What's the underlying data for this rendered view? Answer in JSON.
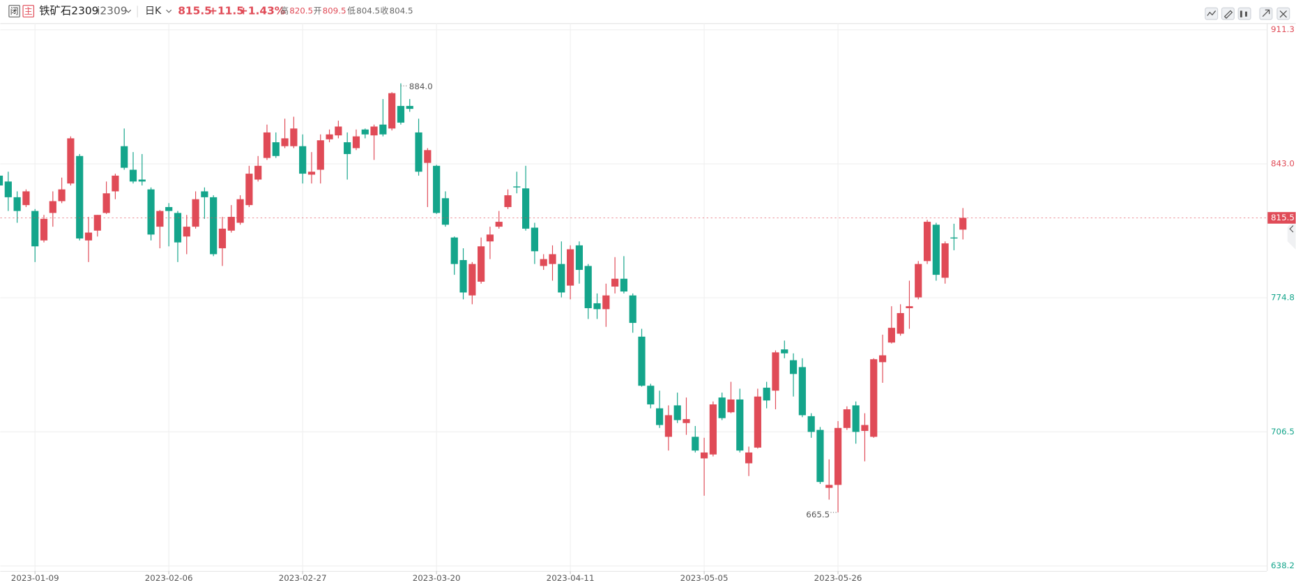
{
  "header": {
    "buttons": [
      "闭",
      "主"
    ],
    "name": "铁矿石2309",
    "code": "i2309",
    "period": "日K",
    "change": "+11.5",
    "change_pct": "+1.43%",
    "stat_labels": [
      "高",
      "开",
      "低",
      "收"
    ],
    "prev_close": 804.5
  },
  "chart_data": {
    "type": "candlestick",
    "categories": [
      null,
      null,
      null,
      null,
      "2023-01-09",
      null,
      null,
      null,
      null,
      null,
      null,
      null,
      null,
      null,
      null,
      null,
      null,
      null,
      null,
      "2023-02-06",
      null,
      null,
      null,
      null,
      null,
      null,
      null,
      null,
      null,
      null,
      null,
      null,
      null,
      null,
      "2023-02-27",
      null,
      null,
      null,
      null,
      null,
      null,
      null,
      null,
      null,
      null,
      null,
      null,
      null,
      null,
      "2023-03-20",
      null,
      null,
      null,
      null,
      null,
      null,
      null,
      null,
      null,
      null,
      null,
      null,
      null,
      null,
      "2023-04-11",
      null,
      null,
      null,
      null,
      null,
      null,
      null,
      null,
      null,
      null,
      null,
      null,
      null,
      null,
      "2023-05-05",
      null,
      null,
      null,
      null,
      null,
      null,
      null,
      null,
      null,
      null,
      null,
      null,
      null,
      null,
      "2023-05-26",
      null,
      null,
      null,
      null,
      null,
      null,
      null,
      null,
      null,
      null,
      null,
      null,
      null,
      null
    ],
    "open": [
      837,
      834,
      826,
      822,
      819,
      804,
      818,
      824,
      833,
      847,
      804,
      809,
      818,
      829,
      852,
      840,
      835,
      830,
      811,
      821,
      818,
      806,
      811,
      829,
      826,
      800,
      809,
      813,
      822,
      835,
      846,
      854,
      852,
      852,
      852,
      837.5,
      840,
      855.5,
      857.5,
      854,
      851,
      860.5,
      857.5,
      863,
      861,
      872.5,
      872.5,
      859,
      843.5,
      842,
      825.5,
      805.5,
      794,
      776,
      783,
      803.5,
      811,
      821,
      831.5,
      830.5,
      810.5,
      791,
      792,
      792,
      781,
      801.5,
      791,
      772,
      769,
      780.5,
      784.5,
      776,
      755,
      730,
      718.5,
      704,
      720,
      711,
      704,
      693,
      695,
      724,
      716.5,
      723,
      690.5,
      698.5,
      729,
      727.5,
      748.5,
      743,
      739.5,
      714.5,
      707.5,
      678,
      679.5,
      708.5,
      720,
      707,
      704,
      742,
      752,
      756.5,
      769.5,
      775,
      793.5,
      812,
      785,
      805.5,
      809.5
    ],
    "high": [
      840,
      839,
      829,
      830,
      820,
      817,
      829,
      836,
      857,
      848,
      816,
      817,
      834,
      838,
      861,
      849,
      848,
      831,
      819.5,
      823,
      819,
      817,
      829,
      831,
      827,
      816,
      822,
      827,
      842,
      847,
      863,
      859,
      866,
      867,
      858,
      849,
      858,
      860.5,
      865,
      859,
      860.5,
      861,
      863,
      876,
      879.5,
      884,
      876,
      866,
      851,
      842.5,
      829,
      806,
      800,
      793,
      805.5,
      811,
      819,
      830,
      839,
      842,
      813,
      797,
      801.5,
      803.5,
      801.5,
      803.5,
      792,
      777,
      782,
      795.5,
      796,
      777,
      759,
      731,
      727.5,
      720,
      726.5,
      724,
      709.5,
      703.5,
      722,
      726.5,
      732,
      728.5,
      699,
      728.5,
      732,
      748,
      753,
      746.5,
      744,
      716,
      709,
      692.5,
      712,
      719.5,
      722,
      716,
      744,
      756,
      770.5,
      771.5,
      783.5,
      793.5,
      814.5,
      813,
      803.5,
      812.5,
      820.5
    ],
    "low": [
      827.5,
      819,
      813,
      821,
      793,
      803,
      811,
      823,
      832,
      804,
      793,
      806,
      817.5,
      825,
      840,
      833,
      832,
      804,
      800,
      801,
      793,
      797,
      810,
      815,
      796,
      791,
      808,
      812,
      821,
      834,
      845,
      846,
      851,
      851,
      833,
      833,
      833,
      854,
      856,
      835,
      850,
      856,
      845,
      857,
      860,
      863,
      869.5,
      837,
      821,
      817.5,
      811,
      786.5,
      774,
      771.5,
      782,
      794.5,
      810,
      820,
      828,
      809,
      792,
      789,
      783.5,
      775,
      774,
      782,
      764,
      764,
      760,
      777,
      777,
      757,
      729.5,
      718.5,
      708.5,
      697,
      711,
      705,
      696,
      674,
      694,
      712.5,
      716,
      696,
      684,
      698,
      718.5,
      718,
      744,
      724.5,
      714,
      703.5,
      680,
      672,
      665.5,
      707.5,
      700.5,
      691.5,
      703.5,
      731.5,
      751.5,
      755.5,
      759,
      774,
      792,
      783.5,
      782,
      799,
      804.5
    ],
    "close": [
      832,
      826,
      819,
      829,
      801,
      815,
      824,
      830,
      856,
      805,
      808,
      817,
      828,
      837,
      841,
      834,
      834,
      807,
      819,
      819,
      803,
      811,
      825,
      826,
      797,
      810,
      816,
      825,
      838,
      842,
      859,
      847,
      856,
      861,
      838,
      839,
      855,
      858,
      862,
      848,
      857,
      858,
      862,
      858,
      879,
      864,
      871,
      839,
      850,
      818,
      812,
      792,
      777.5,
      792,
      801,
      807,
      813.5,
      827,
      831,
      810,
      798.5,
      794.5,
      797,
      777.5,
      799.5,
      789,
      769.5,
      769,
      776,
      784.5,
      778,
      762,
      730,
      720.5,
      710,
      715,
      712.5,
      713,
      697,
      696,
      720.5,
      713.5,
      723,
      697,
      696,
      724.5,
      722.5,
      747,
      746.5,
      736,
      715,
      706.5,
      681,
      679.5,
      708.5,
      718,
      706.5,
      710,
      743.5,
      745.5,
      759.5,
      767,
      770.5,
      792,
      813.5,
      786.5,
      802.5,
      805,
      815.5
    ],
    "up_color": "#e04b57",
    "down_color": "#14a58b",
    "ylim": [
      638.2,
      911.3
    ],
    "yticks": [
      911.3,
      {
        "value": 843,
        "label": "843.0"
      },
      774.8,
      706.5,
      638.2
    ],
    "ytick_colors": [
      "#e04b57",
      "#e04b57",
      "#14a58b",
      "#14a58b",
      "#14a58b"
    ],
    "grid": true,
    "annotations": [
      {
        "value": 884,
        "label": "884.0"
      },
      {
        "value": 665.5,
        "label": "665.5"
      }
    ]
  }
}
